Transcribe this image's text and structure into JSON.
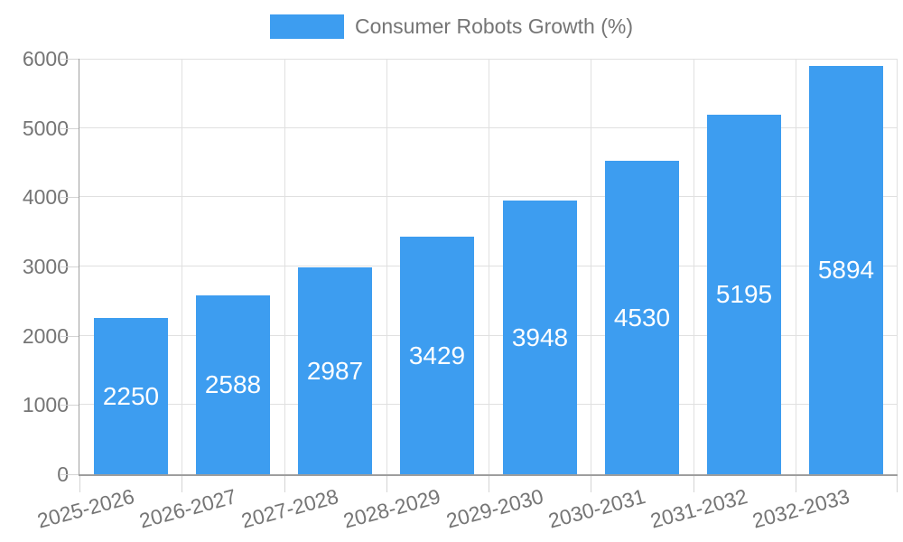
{
  "legend": {
    "label": "Consumer Robots Growth (%)"
  },
  "chart_data": {
    "type": "bar",
    "title": "",
    "xlabel": "",
    "ylabel": "",
    "categories": [
      "2025-2026",
      "2026-2027",
      "2027-2028",
      "2028-2029",
      "2029-2030",
      "2030-2031",
      "2031-2032",
      "2032-2033"
    ],
    "series": [
      {
        "name": "Consumer Robots Growth (%)",
        "color": "#3D9DF0",
        "values": [
          2250,
          2588,
          2987,
          3429,
          3948,
          4530,
          5195,
          5894
        ]
      }
    ],
    "ylim": [
      0,
      6000
    ],
    "yticks": [
      0,
      1000,
      2000,
      3000,
      4000,
      5000,
      6000
    ],
    "grid": true,
    "legend_position": "top-center",
    "value_labels_position": "inside-center",
    "value_labels_color": "#FFFFFF"
  },
  "colors": {
    "bar": "#3D9DF0",
    "axis_label": "#757575",
    "axis_line": "#9E9E9E",
    "gridline": "#E0E0E0",
    "tick": "#D4D4D4",
    "background": "#FFFFFF"
  }
}
